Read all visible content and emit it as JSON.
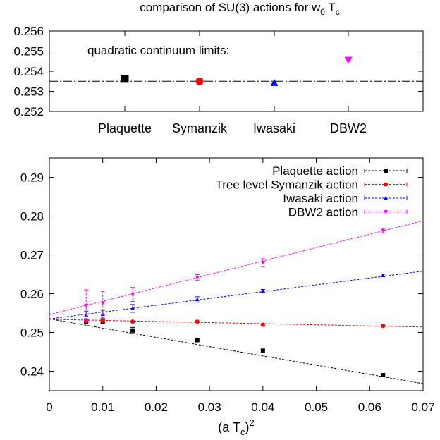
{
  "colors": {
    "plaquette": "#000000",
    "symanzik": "#ff0000",
    "iwasaki": "#0000ff",
    "dbw2": "#ff00ff",
    "axis": "#000000"
  },
  "chart_data": [
    {
      "type": "scatter",
      "title_main": "comparison of SU(3) actions for w",
      "title_sub": "0",
      "title_mid": " T",
      "title_sub2": "c",
      "annotation": "quadratic continuum limits:",
      "categories": [
        "Plaquette",
        "Symanzik",
        "Iwasaki",
        "DBW2"
      ],
      "yticks": [
        "0.256",
        "0.255",
        "0.254",
        "0.253",
        "0.252"
      ],
      "ylim": [
        0.252,
        0.256
      ],
      "reference_line": 0.2535,
      "series": [
        {
          "label": "Plaquette",
          "value": 0.25362,
          "marker": "square",
          "color": "#000000"
        },
        {
          "label": "Symanzik",
          "value": 0.2535,
          "marker": "circle",
          "color": "#ff0000"
        },
        {
          "label": "Iwasaki",
          "value": 0.25342,
          "marker": "triangle-up",
          "color": "#0000ff"
        },
        {
          "label": "DBW2",
          "value": 0.25456,
          "marker": "triangle-down",
          "color": "#ff00ff"
        }
      ]
    },
    {
      "type": "scatter",
      "xlabel_main": "(a T",
      "xlabel_sub": "c",
      "xlabel_close": ")",
      "xlabel_sup": "2",
      "xlim": [
        0,
        0.07
      ],
      "ylim": [
        0.235,
        0.295
      ],
      "xticks": [
        "0",
        "0.01",
        "0.02",
        "0.03",
        "0.04",
        "0.05",
        "0.06",
        "0.07"
      ],
      "yticks": [
        "0.29",
        "0.28",
        "0.27",
        "0.26",
        "0.25",
        "0.24"
      ],
      "legend_position": "top-right",
      "series": [
        {
          "name": "Plaquette action",
          "color": "#000000",
          "marker": "square",
          "fit": {
            "intercept": 0.2535,
            "slope": -0.2386
          },
          "points": [
            {
              "x": 0.0069,
              "y": 0.2527,
              "err": 0.0005
            },
            {
              "x": 0.01,
              "y": 0.2528,
              "err": 0.0004
            },
            {
              "x": 0.0156,
              "y": 0.2505,
              "err": 0.0008
            },
            {
              "x": 0.0277,
              "y": 0.248,
              "err": 0.0003
            },
            {
              "x": 0.04,
              "y": 0.2453,
              "err": 0.0004
            },
            {
              "x": 0.0625,
              "y": 0.239,
              "err": 0.0003
            }
          ]
        },
        {
          "name": "Tree level Symanzik action",
          "color": "#ff0000",
          "marker": "circle",
          "fit": {
            "intercept": 0.2534,
            "slope": -0.0286
          },
          "points": [
            {
              "x": 0.0069,
              "y": 0.253,
              "err": 0.0003
            },
            {
              "x": 0.01,
              "y": 0.253,
              "err": 0.0003
            },
            {
              "x": 0.0156,
              "y": 0.2528,
              "err": 0.0002
            },
            {
              "x": 0.0277,
              "y": 0.2528,
              "err": 0.0002
            },
            {
              "x": 0.04,
              "y": 0.252,
              "err": 0.0002
            },
            {
              "x": 0.0625,
              "y": 0.2517,
              "err": 0.0002
            }
          ]
        },
        {
          "name": "Iwasaki action",
          "color": "#0000ff",
          "marker": "triangle-up",
          "fit": {
            "intercept": 0.2535,
            "slope": 0.1757
          },
          "points": [
            {
              "x": 0.0069,
              "y": 0.2545,
              "err": 0.001
            },
            {
              "x": 0.01,
              "y": 0.2547,
              "err": 0.001
            },
            {
              "x": 0.0156,
              "y": 0.2562,
              "err": 0.001
            },
            {
              "x": 0.0277,
              "y": 0.2585,
              "err": 0.0007
            },
            {
              "x": 0.04,
              "y": 0.2607,
              "err": 0.0004
            },
            {
              "x": 0.0625,
              "y": 0.2647,
              "err": 0.0003
            }
          ]
        },
        {
          "name": "DBW2 action",
          "color": "#ff00ff",
          "marker": "triangle-down",
          "fit": {
            "intercept": 0.2546,
            "slope": 0.3457
          },
          "points": [
            {
              "x": 0.0069,
              "y": 0.257,
              "err": 0.004
            },
            {
              "x": 0.01,
              "y": 0.2576,
              "err": 0.003
            },
            {
              "x": 0.0156,
              "y": 0.2598,
              "err": 0.0018
            },
            {
              "x": 0.0277,
              "y": 0.2642,
              "err": 0.0007
            },
            {
              "x": 0.04,
              "y": 0.268,
              "err": 0.001
            },
            {
              "x": 0.0625,
              "y": 0.2763,
              "err": 0.0006
            }
          ]
        }
      ]
    }
  ]
}
